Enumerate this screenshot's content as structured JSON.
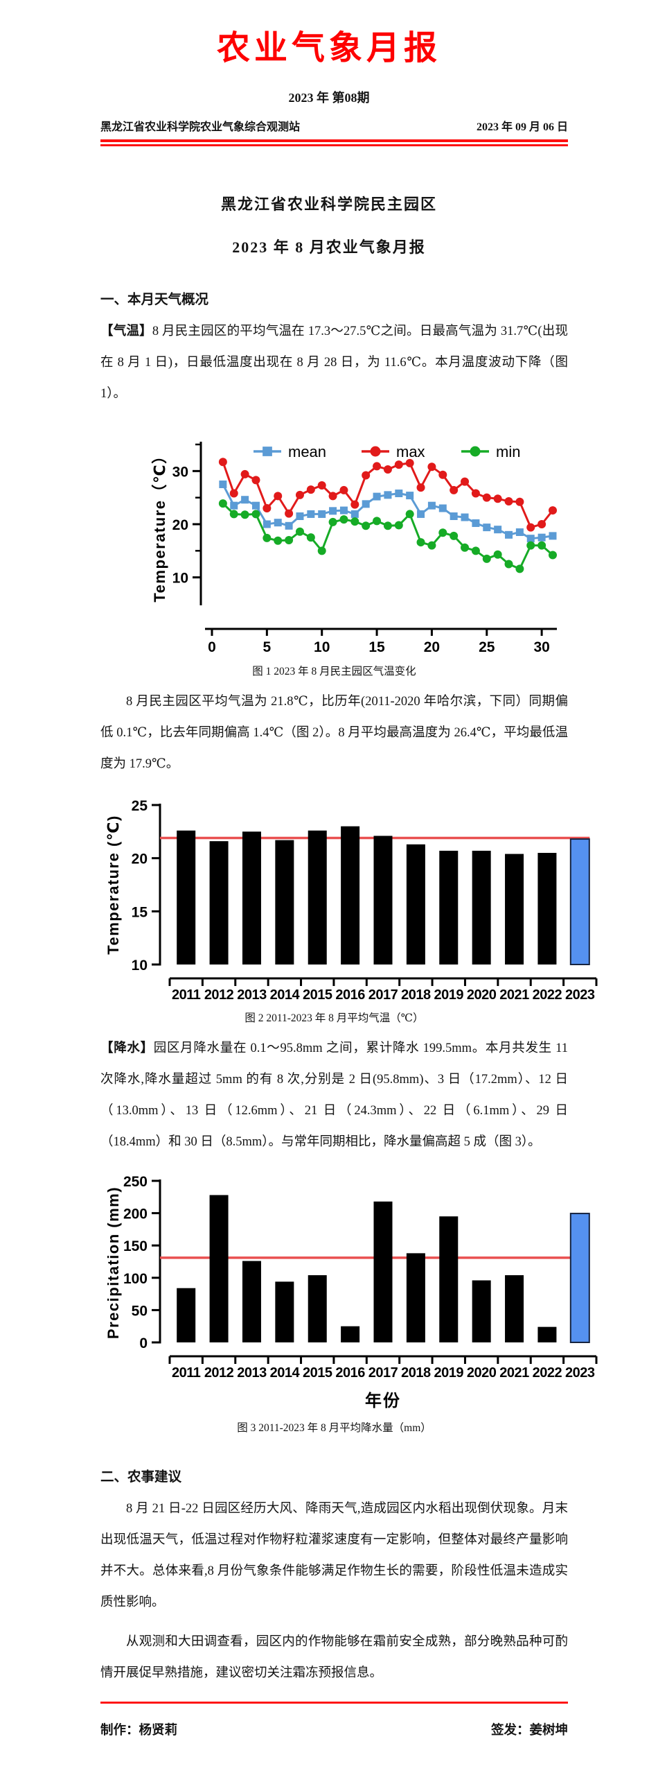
{
  "masthead": {
    "title": "农业气象月报",
    "issue": "2023 年 第08期",
    "org": "黑龙江省农业科学院农业气象综合观测站",
    "date": "2023 年 09 月 06 日"
  },
  "report": {
    "title_line1": "黑龙江省农业科学院民主园区",
    "title_line2": "2023 年 8 月农业气象月报"
  },
  "sections": {
    "s1_heading": "一、本月天气概况",
    "temp_tag": "【气温】",
    "temp_text": "8 月民主园区的平均气温在 17.3～27.5℃之间。日最高气温为 31.7℃(出现在 8 月 1 日)，日最低温度出现在 8 月 28 日，为 11.6℃。本月温度波动下降（图 1）。",
    "fig1_caption": "图 1 2023 年 8 月民主园区气温变化",
    "temp_para2": "8 月民主园区平均气温为 21.8℃，比历年(2011-2020 年哈尔滨，下同）同期偏低 0.1℃，比去年同期偏高 1.4℃（图 2）。8 月平均最高温度为 26.4℃，平均最低温度为 17.9℃。",
    "fig2_caption": "图 2 2011-2023 年 8 月平均气温（℃）",
    "precip_tag": "【降水】",
    "precip_text": "园区月降水量在 0.1～95.8mm 之间，累计降水 199.5mm。本月共发生 11 次降水,降水量超过 5mm 的有 8 次,分别是 2 日(95.8mm)、3 日（17.2mm）、12 日（13.0mm）、13 日（12.6mm）、21 日（24.3mm）、22 日（6.1mm）、29 日（18.4mm）和 30 日（8.5mm）。与常年同期相比，降水量偏高超 5 成（图 3）。",
    "fig3_caption": "图 3 2011-2023 年 8 月平均降水量（mm）",
    "s2_heading": "二、农事建议",
    "advice_para1": "8 月 21 日-22 日园区经历大风、降雨天气,造成园区内水稻出现倒伏现象。月末出现低温天气，低温过程对作物籽粒灌浆速度有一定影响，但整体对最终产量影响并不大。总体来看,8 月份气象条件能够满足作物生长的需要，阶段性低温未造成实质性影响。",
    "advice_para2": "从观测和大田调查看，园区内的作物能够在霜前安全成熟，部分晚熟品种可酌情开展促早熟措施，建议密切关注霜冻预报信息。"
  },
  "footer": {
    "producer": "制作：杨贤莉",
    "issuer": "签发：姜树坤"
  },
  "colors": {
    "masthead_red": "#fe0000",
    "rule_red": "#fe0f0f",
    "refline_red": "#e95050",
    "mean_blue": "#5b9bd5",
    "max_red": "#e11a1a",
    "min_green": "#16ab26",
    "bar_black": "#000000",
    "highlight_blue": "#5591f0"
  },
  "chart_data": [
    {
      "id": "fig1",
      "type": "line",
      "title": "2023年8月民主园区气温变化",
      "xlabel": "",
      "ylabel": "Temperature（℃）",
      "x": [
        1,
        2,
        3,
        4,
        5,
        6,
        7,
        8,
        9,
        10,
        11,
        12,
        13,
        14,
        15,
        16,
        17,
        18,
        19,
        20,
        21,
        22,
        23,
        24,
        25,
        26,
        27,
        28,
        29,
        30,
        31
      ],
      "xticks": [
        0,
        5,
        10,
        15,
        20,
        25,
        30
      ],
      "ylim": [
        5,
        35
      ],
      "yticks": [
        10,
        20,
        30
      ],
      "yminor": [
        15,
        25,
        35
      ],
      "grid": false,
      "legend_position": "top",
      "series": [
        {
          "name": "mean",
          "marker": "square",
          "color": "#5b9bd5",
          "values": [
            27.5,
            23.5,
            24.6,
            23.5,
            20.0,
            20.3,
            19.7,
            21.5,
            21.9,
            21.9,
            22.5,
            22.6,
            21.9,
            23.8,
            25.2,
            25.5,
            25.8,
            25.4,
            21.9,
            23.5,
            23.0,
            21.5,
            21.3,
            20.2,
            19.4,
            19.0,
            18.0,
            18.5,
            17.3,
            17.5,
            17.8
          ]
        },
        {
          "name": "max",
          "marker": "circle",
          "color": "#e11a1a",
          "values": [
            31.7,
            25.8,
            29.4,
            28.3,
            23.0,
            25.3,
            22.0,
            25.5,
            26.5,
            27.3,
            25.3,
            26.4,
            23.7,
            29.2,
            30.9,
            30.3,
            31.2,
            31.5,
            26.9,
            30.8,
            29.3,
            26.4,
            28.0,
            25.8,
            25.0,
            24.8,
            24.3,
            24.2,
            19.4,
            20.0,
            22.6
          ]
        },
        {
          "name": "min",
          "marker": "circle",
          "color": "#16ab26",
          "values": [
            23.9,
            21.9,
            21.8,
            21.9,
            17.4,
            16.9,
            17.0,
            18.6,
            17.5,
            15.0,
            20.4,
            20.9,
            20.5,
            19.7,
            20.6,
            19.7,
            19.8,
            21.9,
            16.6,
            16.0,
            18.4,
            17.8,
            15.6,
            15.0,
            13.5,
            14.3,
            12.5,
            11.6,
            16.0,
            16.0,
            14.2
          ]
        }
      ]
    },
    {
      "id": "fig2",
      "type": "bar",
      "title": "2011-2023年8月平均气温（℃）",
      "xlabel": "",
      "ylabel": "Temperature (℃)",
      "categories": [
        "2011",
        "2012",
        "2013",
        "2014",
        "2015",
        "2016",
        "2017",
        "2018",
        "2019",
        "2020",
        "2021",
        "2022",
        "2023"
      ],
      "values": [
        22.6,
        21.6,
        22.5,
        21.7,
        22.6,
        23.0,
        22.1,
        21.3,
        20.7,
        20.7,
        20.4,
        20.5,
        21.8
      ],
      "ylim": [
        10,
        25
      ],
      "yticks": [
        10,
        15,
        20,
        25
      ],
      "baseline": 10,
      "grid": false,
      "bar_color": "#000000",
      "highlight": {
        "index": 12,
        "color": "#5591f0",
        "label": "2023"
      },
      "refline": {
        "value": 21.9,
        "color": "#e95050",
        "meaning": "2011-2020 历年同期平均"
      }
    },
    {
      "id": "fig3",
      "type": "bar",
      "title": "2011-2023年8月平均降水量（mm）",
      "xlabel": "年份",
      "ylabel": "Precipitation (mm)",
      "categories": [
        "2011",
        "2012",
        "2013",
        "2014",
        "2015",
        "2016",
        "2017",
        "2018",
        "2019",
        "2020",
        "2021",
        "2022",
        "2023"
      ],
      "values": [
        84,
        228,
        126,
        94,
        104,
        25,
        218,
        138,
        195,
        96,
        104,
        24,
        199.5
      ],
      "ylim": [
        0,
        250
      ],
      "yticks": [
        0,
        50,
        100,
        150,
        200,
        250
      ],
      "baseline": 0,
      "grid": false,
      "bar_color": "#000000",
      "highlight": {
        "index": 12,
        "color": "#5591f0",
        "label": "2023"
      },
      "refline": {
        "value": 131,
        "color": "#e95050",
        "meaning": "常年同期平均"
      }
    }
  ]
}
